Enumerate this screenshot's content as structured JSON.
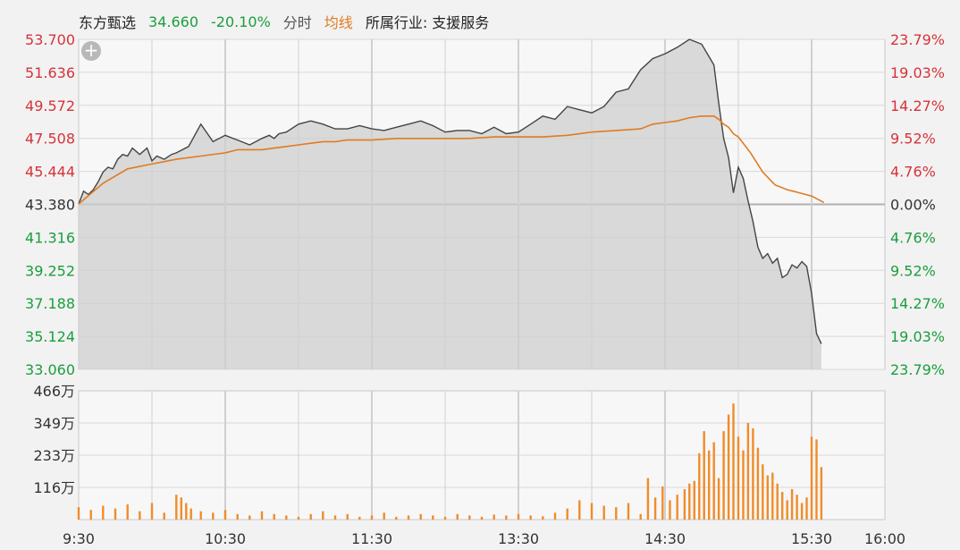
{
  "header": {
    "name": "东方甄选",
    "price": "34.660",
    "change_pct": "-20.10%",
    "tab_fenshi": "分时",
    "tab_junxian": "均线",
    "industry": "所属行业: 支援服务"
  },
  "controls": {
    "plus_label": "+"
  },
  "colors": {
    "up": "#d6333a",
    "down": "#1a9e3c",
    "neutral": "#333333",
    "price_line": "#444444",
    "avg_line": "#e07b22",
    "volume": "#f08c2a",
    "area_fill": "#cfcfcf"
  },
  "chart_data": [
    {
      "type": "line",
      "title": "",
      "left_axis_ticks": [
        "53.700",
        "51.636",
        "49.572",
        "47.508",
        "45.444",
        "43.380",
        "41.316",
        "39.252",
        "37.188",
        "35.124",
        "33.060"
      ],
      "right_axis_ticks": [
        "23.79%",
        "19.03%",
        "14.27%",
        "9.52%",
        "4.76%",
        "0.00%",
        "4.76%",
        "9.52%",
        "14.27%",
        "19.03%",
        "23.79%"
      ],
      "prev_close": 43.38,
      "ylim": [
        33.06,
        53.7
      ],
      "x_ticks": [
        "9:30",
        "10:30",
        "11:30",
        "13:30",
        "14:30",
        "15:30",
        "16:00"
      ],
      "series": [
        {
          "x": [
            0,
            2,
            4,
            6,
            8,
            10,
            12,
            14,
            16,
            18,
            20,
            22,
            25,
            28,
            30,
            32,
            35,
            38,
            40,
            45,
            50,
            55,
            60,
            65,
            70,
            75,
            78,
            80,
            82,
            85,
            90,
            95,
            100,
            105,
            110,
            115,
            120,
            125,
            130,
            135,
            140,
            145,
            150,
            155,
            160,
            165,
            170,
            175,
            180,
            185,
            190,
            195,
            200,
            205,
            210,
            215,
            220,
            225,
            230,
            235,
            240,
            245,
            250,
            255,
            260,
            262,
            264,
            266,
            268,
            270,
            272,
            274,
            276,
            278,
            280,
            282,
            284,
            286,
            288,
            290,
            292,
            294,
            296,
            298,
            300,
            302,
            304
          ],
          "values": [
            43.4,
            44.2,
            44.0,
            44.3,
            44.8,
            45.4,
            45.7,
            45.6,
            46.2,
            46.5,
            46.4,
            46.9,
            46.5,
            46.9,
            46.1,
            46.4,
            46.2,
            46.5,
            46.6,
            47.0,
            48.4,
            47.3,
            47.7,
            47.4,
            47.1,
            47.5,
            47.7,
            47.5,
            47.8,
            47.9,
            48.4,
            48.6,
            48.4,
            48.1,
            48.1,
            48.3,
            48.1,
            48.0,
            48.2,
            48.4,
            48.6,
            48.3,
            47.9,
            48.0,
            48.0,
            47.8,
            48.2,
            47.8,
            47.9,
            48.4,
            48.9,
            48.7,
            49.5,
            49.3,
            49.1,
            49.5,
            50.4,
            50.6,
            51.8,
            52.5,
            52.8,
            53.2,
            53.7,
            53.4,
            52.1,
            49.7,
            47.5,
            46.3,
            44.1,
            45.7,
            45.0,
            43.6,
            42.3,
            40.7,
            40.0,
            40.3,
            39.7,
            40.0,
            38.8,
            39.0,
            39.6,
            39.4,
            39.8,
            39.5,
            37.8,
            35.3,
            34.66
          ],
          "name": ""
        },
        {
          "x": [
            0,
            10,
            20,
            30,
            40,
            50,
            60,
            65,
            70,
            75,
            80,
            85,
            90,
            95,
            100,
            105,
            110,
            120,
            130,
            140,
            150,
            160,
            170,
            180,
            190,
            200,
            210,
            220,
            230,
            235,
            240,
            245,
            250,
            255,
            260,
            262,
            264,
            266,
            268,
            270,
            275,
            280,
            285,
            290,
            295,
            300,
            305
          ],
          "values": [
            43.4,
            44.7,
            45.6,
            45.9,
            46.2,
            46.4,
            46.6,
            46.8,
            46.8,
            46.8,
            46.9,
            47.0,
            47.1,
            47.2,
            47.3,
            47.3,
            47.4,
            47.4,
            47.5,
            47.5,
            47.5,
            47.5,
            47.6,
            47.6,
            47.6,
            47.7,
            47.9,
            48.0,
            48.1,
            48.4,
            48.5,
            48.6,
            48.8,
            48.9,
            48.9,
            48.7,
            48.4,
            48.2,
            47.8,
            47.6,
            46.6,
            45.4,
            44.6,
            44.3,
            44.1,
            43.9,
            43.5
          ],
          "name": ""
        }
      ]
    },
    {
      "type": "bar",
      "title": "",
      "y_ticks": [
        "466万",
        "349万",
        "233万",
        "116万"
      ],
      "ylim": [
        0,
        466
      ],
      "x": [
        0,
        5,
        10,
        15,
        20,
        25,
        30,
        35,
        40,
        42,
        44,
        46,
        50,
        55,
        60,
        65,
        70,
        75,
        80,
        85,
        90,
        95,
        100,
        105,
        110,
        115,
        120,
        125,
        130,
        135,
        140,
        145,
        150,
        155,
        160,
        165,
        170,
        175,
        180,
        185,
        190,
        195,
        200,
        205,
        210,
        215,
        220,
        225,
        230,
        233,
        236,
        239,
        242,
        245,
        248,
        250,
        252,
        254,
        256,
        258,
        260,
        262,
        264,
        266,
        268,
        270,
        272,
        274,
        276,
        278,
        280,
        282,
        284,
        286,
        288,
        290,
        292,
        294,
        296,
        298,
        300,
        302,
        304
      ],
      "values": [
        45,
        35,
        50,
        40,
        55,
        30,
        60,
        25,
        90,
        80,
        60,
        40,
        30,
        25,
        35,
        20,
        15,
        30,
        20,
        15,
        10,
        20,
        30,
        15,
        20,
        10,
        15,
        25,
        10,
        15,
        20,
        15,
        10,
        20,
        15,
        10,
        18,
        15,
        20,
        15,
        12,
        25,
        40,
        70,
        60,
        50,
        45,
        60,
        20,
        150,
        80,
        120,
        70,
        90,
        110,
        130,
        140,
        240,
        320,
        250,
        280,
        150,
        320,
        380,
        420,
        300,
        250,
        350,
        330,
        260,
        200,
        160,
        170,
        130,
        100,
        70,
        110,
        90,
        60,
        80,
        300,
        290,
        190
      ],
      "name": ""
    }
  ]
}
